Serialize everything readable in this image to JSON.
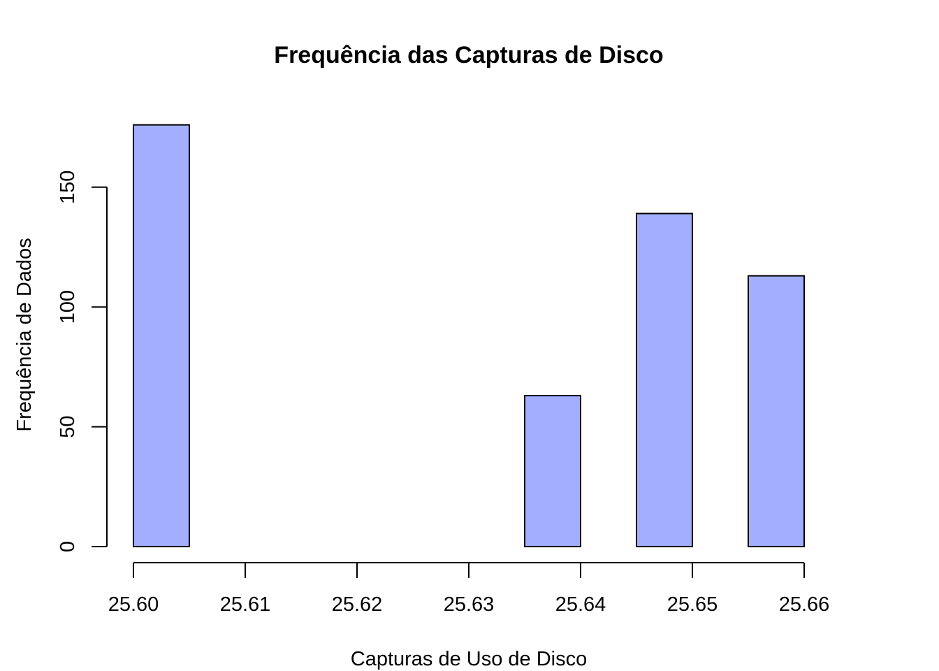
{
  "chart_data": {
    "type": "bar",
    "title": "Frequência das Capturas de Disco",
    "xlabel": "Capturas de Uso de Disco",
    "ylabel": "Frequência de Dados",
    "bins": [
      {
        "start": 25.6,
        "end": 25.605,
        "count": 176
      },
      {
        "start": 25.605,
        "end": 25.61,
        "count": 0
      },
      {
        "start": 25.61,
        "end": 25.615,
        "count": 0
      },
      {
        "start": 25.615,
        "end": 25.62,
        "count": 0
      },
      {
        "start": 25.62,
        "end": 25.625,
        "count": 0
      },
      {
        "start": 25.625,
        "end": 25.63,
        "count": 0
      },
      {
        "start": 25.63,
        "end": 25.635,
        "count": 0
      },
      {
        "start": 25.635,
        "end": 25.64,
        "count": 63
      },
      {
        "start": 25.64,
        "end": 25.645,
        "count": 0
      },
      {
        "start": 25.645,
        "end": 25.65,
        "count": 139
      },
      {
        "start": 25.65,
        "end": 25.655,
        "count": 0
      },
      {
        "start": 25.655,
        "end": 25.66,
        "count": 113
      }
    ],
    "xlim": [
      25.6,
      25.66
    ],
    "ylim": [
      0,
      176
    ],
    "xticks": [
      "25.60",
      "25.61",
      "25.62",
      "25.63",
      "25.64",
      "25.65",
      "25.66"
    ],
    "yticks": [
      "0",
      "50",
      "100",
      "150"
    ],
    "bar_color": "#A3AEFF",
    "grid": false
  }
}
